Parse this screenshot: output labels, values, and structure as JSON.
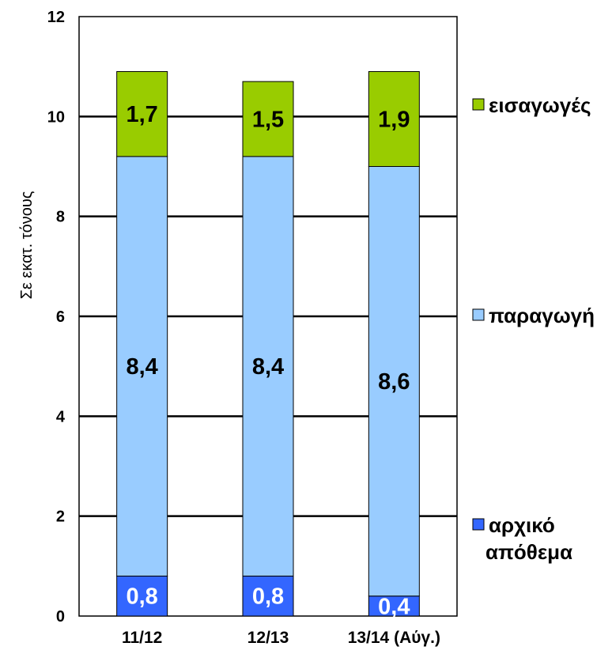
{
  "chart_data": {
    "type": "bar",
    "stacked": true,
    "categories": [
      "11/12",
      "12/13",
      "13/14 (Αύγ.)"
    ],
    "series": [
      {
        "name": "αρχικό απόθεμα",
        "values": [
          0.8,
          0.8,
          0.4
        ],
        "labels": [
          "0,8",
          "0,8",
          "0,4"
        ],
        "color": "#3366ff",
        "label_color": "#ffffff"
      },
      {
        "name": "παραγωγή",
        "values": [
          8.4,
          8.4,
          8.6
        ],
        "labels": [
          "8,4",
          "8,4",
          "8,6"
        ],
        "color": "#99ccff",
        "label_color": "#000000"
      },
      {
        "name": "εισαγωγές",
        "values": [
          1.7,
          1.5,
          1.9
        ],
        "labels": [
          "1,7",
          "1,5",
          "1,9"
        ],
        "color": "#99cc00",
        "label_color": "#000000"
      }
    ],
    "legend_order": [
      2,
      1,
      0
    ],
    "ylabel": "Σε εκατ. τόνους",
    "ylim": [
      0,
      12
    ],
    "yticks": [
      "0",
      "2",
      "4",
      "6",
      "8",
      "10",
      "12"
    ],
    "grid": true,
    "legend_position": "right"
  }
}
